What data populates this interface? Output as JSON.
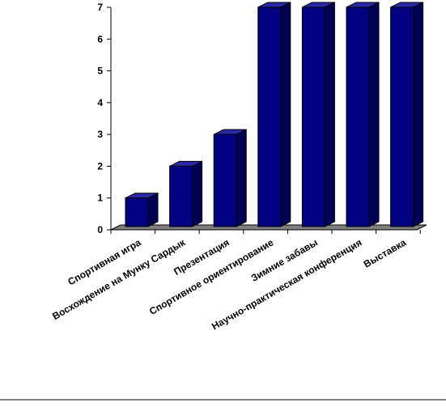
{
  "chart_data": {
    "type": "bar",
    "title": "",
    "xlabel": "",
    "ylabel": "",
    "categories": [
      "Спортивная игра",
      "Восхождение на Мунку Сардык",
      "Презентация",
      "Спортивное ориентирование",
      "Зимние забавы",
      "Научно-практическая конференция",
      "Выставка"
    ],
    "values": [
      1,
      2,
      3,
      7,
      7,
      7,
      7
    ],
    "ylim": [
      0,
      7
    ],
    "yticks": [
      "0",
      "1",
      "2",
      "3",
      "4",
      "5",
      "6",
      "7"
    ],
    "grid": false,
    "legend": "none",
    "colors": {
      "bar_front": "#000080",
      "bar_top": "#2929a8",
      "bar_side": "#000055",
      "floor": "#808080",
      "axis": "#000000",
      "text": "#000000"
    }
  }
}
